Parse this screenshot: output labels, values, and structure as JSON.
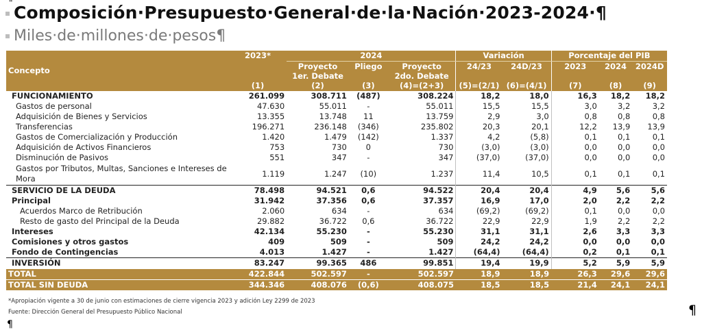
{
  "pilcrow": "¶",
  "title": "Composición·Presupuesto·General·de·la·Nación·2023-2024·¶",
  "subtitle": "Miles·de·millones·de·pesos¶",
  "header": {
    "concept": "Concepto",
    "y2023": "2023*",
    "y2024": "2024",
    "variacion": "Variación",
    "pib": "Porcentaje del PIB",
    "proyecto1_l1": "Proyecto",
    "proyecto1_l2": "1er. Debate",
    "pliego": "Pliego",
    "proyecto2_l1": "Proyecto",
    "proyecto2_l2": "2do. Debate",
    "v2423": "24/23",
    "v24d23": "24D/23",
    "p2023": "2023",
    "p2024": "2024",
    "p2024d": "2024D",
    "codes": [
      "(1)",
      "(2)",
      "(3)",
      "(4)=(2+3)",
      "(5)=(2/1)",
      "(6)=(4/1)",
      "(7)",
      "(8)",
      "(9)"
    ]
  },
  "rows": [
    {
      "label": "FUNCIONAMIENTO",
      "level": "major",
      "values": [
        "261.099",
        "308.711",
        "(487)",
        "308.224",
        "18,2",
        "18,0",
        "16,3",
        "18,2",
        "18,2"
      ]
    },
    {
      "label": "Gastos de personal",
      "level": "l1",
      "values": [
        "47.630",
        "55.011",
        "-",
        "55.011",
        "15,5",
        "15,5",
        "3,0",
        "3,2",
        "3,2"
      ]
    },
    {
      "label": "Adquisición de Bienes y Servicios",
      "level": "l1",
      "values": [
        "13.355",
        "13.748",
        "11",
        "13.759",
        "2,9",
        "3,0",
        "0,8",
        "0,8",
        "0,8"
      ]
    },
    {
      "label": "Transferencias",
      "level": "l1",
      "values": [
        "196.271",
        "236.148",
        "(346)",
        "235.802",
        "20,3",
        "20,1",
        "12,2",
        "13,9",
        "13,9"
      ]
    },
    {
      "label": "Gastos de Comercialización y Producción",
      "level": "l1",
      "values": [
        "1.420",
        "1.479",
        "(142)",
        "1.337",
        "4,2",
        "(5,8)",
        "0,1",
        "0,1",
        "0,1"
      ]
    },
    {
      "label": "Adquisición de Activos Financieros",
      "level": "l1",
      "values": [
        "753",
        "730",
        "0",
        "730",
        "(3,0)",
        "(3,0)",
        "0,0",
        "0,0",
        "0,0"
      ]
    },
    {
      "label": "Disminución de Pasivos",
      "level": "l1",
      "values": [
        "551",
        "347",
        "-",
        "347",
        "(37,0)",
        "(37,0)",
        "0,0",
        "0,0",
        "0,0"
      ]
    },
    {
      "label": "Gastos por Tributos, Multas, Sanciones e Intereses de Mora",
      "level": "l1 wrap",
      "values": [
        "1.119",
        "1.247",
        "(10)",
        "1.237",
        "11,4",
        "10,5",
        "0,1",
        "0,1",
        "0,1"
      ]
    },
    {
      "label": "SERVICIO DE LA DEUDA",
      "level": "major topline",
      "values": [
        "78.498",
        "94.521",
        "0,6",
        "94.522",
        "20,4",
        "20,4",
        "4,9",
        "5,6",
        "5,6"
      ]
    },
    {
      "label": "Principal",
      "level": "major",
      "values": [
        "31.942",
        "37.356",
        "0,6",
        "37.357",
        "16,9",
        "17,0",
        "2,0",
        "2,2",
        "2,2"
      ]
    },
    {
      "label": "Acuerdos Marco de Retribución",
      "level": "l2",
      "values": [
        "2.060",
        "634",
        "-",
        "634",
        "(69,2)",
        "(69,2)",
        "0,1",
        "0,0",
        "0,0"
      ]
    },
    {
      "label": "Resto de gasto del Principal de la Deuda",
      "level": "l2",
      "values": [
        "29.882",
        "36.722",
        "0,6",
        "36.722",
        "22,9",
        "22,9",
        "1,9",
        "2,2",
        "2,2"
      ]
    },
    {
      "label": "Intereses",
      "level": "major",
      "values": [
        "42.134",
        "55.230",
        "-",
        "55.230",
        "31,1",
        "31,1",
        "2,6",
        "3,3",
        "3,3"
      ]
    },
    {
      "label": "Comisiones y otros gastos",
      "level": "major",
      "values": [
        "409",
        "509",
        "-",
        "509",
        "24,2",
        "24,2",
        "0,0",
        "0,0",
        "0,0"
      ]
    },
    {
      "label": "Fondo de Contingencias",
      "level": "major",
      "values": [
        "4.013",
        "1.427",
        "-",
        "1.427",
        "(64,4)",
        "(64,4)",
        "0,2",
        "0,1",
        "0,1"
      ]
    },
    {
      "label": "INVERSIÓN",
      "level": "major topline",
      "values": [
        "83.247",
        "99.365",
        "486",
        "99.851",
        "19,4",
        "19,9",
        "5,2",
        "5,9",
        "5,9"
      ]
    }
  ],
  "totals": [
    {
      "label": "TOTAL",
      "values": [
        "422.844",
        "502.597",
        "-",
        "502.597",
        "18,9",
        "18,9",
        "26,3",
        "29,6",
        "29,6"
      ]
    },
    {
      "label": "TOTAL SIN DEUDA",
      "values": [
        "344.346",
        "408.076",
        "(0,6)",
        "408.075",
        "18,5",
        "18,5",
        "21,4",
        "24,1",
        "24,1"
      ]
    }
  ],
  "footnote": "*Apropiación vigente a 30 de junio con estimaciones de cierre vigencia 2023 y adición Ley 2299 de 2023",
  "source": "Fuente: Dirección General del Presupuesto Público Nacional"
}
